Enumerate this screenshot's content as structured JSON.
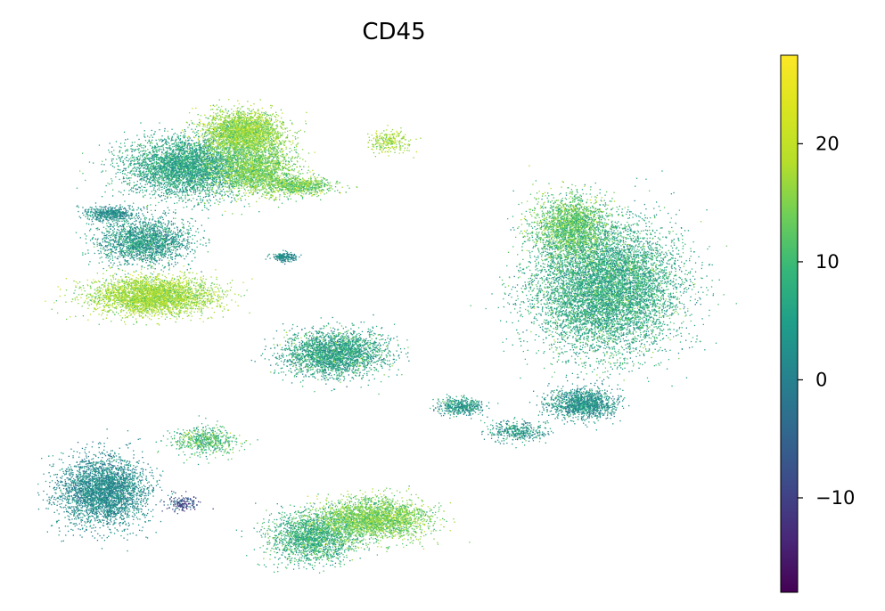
{
  "chart_data": {
    "type": "scatter",
    "title": "CD45",
    "xlabel": "",
    "ylabel": "",
    "grid": false,
    "axes_visible": false,
    "colormap": "viridis",
    "colorbar": {
      "range": [
        -18,
        27.5
      ],
      "ticks": [
        -10,
        0,
        10,
        20
      ],
      "tick_labels": [
        "−10",
        "0",
        "10",
        "20"
      ]
    },
    "clusters": [
      {
        "center": [
          -5.4,
          6.1
        ],
        "spread": [
          1.45,
          0.85
        ],
        "value_mean": 6.0,
        "value_sd": 3.5,
        "weight": 6
      },
      {
        "center": [
          -3.9,
          7.2
        ],
        "spread": [
          0.95,
          0.6
        ],
        "value_mean": 16.0,
        "value_sd": 3.0,
        "weight": 4
      },
      {
        "center": [
          -3.6,
          6.0
        ],
        "spread": [
          0.95,
          0.7
        ],
        "value_mean": 14.0,
        "value_sd": 3.5,
        "weight": 3
      },
      {
        "center": [
          -2.5,
          5.5
        ],
        "spread": [
          0.85,
          0.28
        ],
        "value_mean": 14.0,
        "value_sd": 4.0,
        "weight": 1.2
      },
      {
        "center": [
          -6.5,
          3.7
        ],
        "spread": [
          1.1,
          0.65
        ],
        "value_mean": 4.0,
        "value_sd": 4.0,
        "weight": 3
      },
      {
        "center": [
          -6.3,
          1.95
        ],
        "spread": [
          1.45,
          0.55
        ],
        "value_mean": 17.0,
        "value_sd": 3.0,
        "weight": 5
      },
      {
        "center": [
          -7.4,
          4.6
        ],
        "spread": [
          0.6,
          0.22
        ],
        "value_mean": 2.0,
        "value_sd": 3.0,
        "weight": 0.8
      },
      {
        "center": [
          -7.6,
          -4.3
        ],
        "spread": [
          1.05,
          1.0
        ],
        "value_mean": 1.5,
        "value_sd": 3.0,
        "weight": 5
      },
      {
        "center": [
          -5.5,
          -4.7
        ],
        "spread": [
          0.35,
          0.25
        ],
        "value_mean": -8.0,
        "value_sd": 4.0,
        "weight": 0.25
      },
      {
        "center": [
          -1.5,
          0.1
        ],
        "spread": [
          1.2,
          0.65
        ],
        "value_mean": 6.0,
        "value_sd": 4.5,
        "weight": 4
      },
      {
        "center": [
          -2.1,
          -5.8
        ],
        "spread": [
          1.0,
          0.7
        ],
        "value_mean": 8.0,
        "value_sd": 4.0,
        "weight": 3
      },
      {
        "center": [
          -0.5,
          -5.2
        ],
        "spread": [
          1.3,
          0.6
        ],
        "value_mean": 14.0,
        "value_sd": 3.5,
        "weight": 4
      },
      {
        "center": [
          5.6,
          2.2
        ],
        "spread": [
          1.7,
          1.9
        ],
        "value_mean": 7.0,
        "value_sd": 4.0,
        "weight": 12
      },
      {
        "center": [
          4.7,
          4.2
        ],
        "spread": [
          0.9,
          0.9
        ],
        "value_mean": 12.0,
        "value_sd": 4.0,
        "weight": 3
      },
      {
        "center": [
          5.0,
          -1.5
        ],
        "spread": [
          0.8,
          0.45
        ],
        "value_mean": 3.0,
        "value_sd": 3.5,
        "weight": 2
      },
      {
        "center": [
          1.8,
          -1.6
        ],
        "spread": [
          0.55,
          0.25
        ],
        "value_mean": 4.0,
        "value_sd": 4.0,
        "weight": 0.7
      },
      {
        "center": [
          3.3,
          -2.4
        ],
        "spread": [
          0.7,
          0.3
        ],
        "value_mean": 4.0,
        "value_sd": 4.0,
        "weight": 0.6
      },
      {
        "center": [
          -4.9,
          -2.7
        ],
        "spread": [
          0.8,
          0.4
        ],
        "value_mean": 10.0,
        "value_sd": 4.5,
        "weight": 0.9
      },
      {
        "center": [
          -2.8,
          3.2
        ],
        "spread": [
          0.3,
          0.12
        ],
        "value_mean": 2.0,
        "value_sd": 3.0,
        "weight": 0.3
      },
      {
        "center": [
          -0.1,
          6.9
        ],
        "spread": [
          0.55,
          0.3
        ],
        "value_mean": 17.0,
        "value_sd": 3.0,
        "weight": 0.4
      }
    ]
  }
}
